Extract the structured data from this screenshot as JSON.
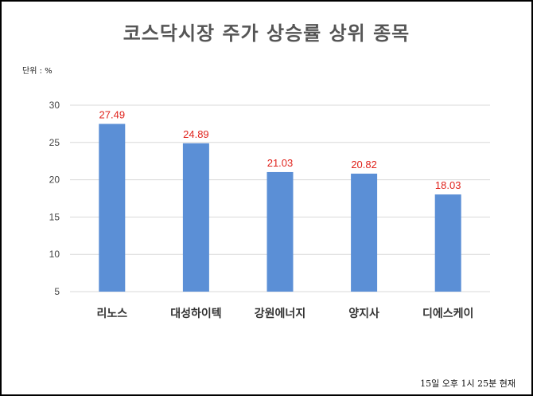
{
  "chart_data": {
    "type": "bar",
    "title": "코스닥시장 주가 상승률 상위 종목",
    "unit_label": "단위 : %",
    "footnote": "15일 오후 1시 25분 현재",
    "categories": [
      "리노스",
      "대성하이텍",
      "강원에너지",
      "양지사",
      "디에스케이"
    ],
    "values": [
      27.49,
      24.89,
      21.03,
      20.82,
      18.03
    ],
    "value_labels": [
      "27.49",
      "24.89",
      "21.03",
      "20.82",
      "18.03"
    ],
    "ylim": [
      5,
      30
    ],
    "yticks": [
      "5",
      "10",
      "15",
      "20",
      "25",
      "30"
    ],
    "grid": true,
    "legend": "none",
    "colors": {
      "bar": "#5b8fd6",
      "data_label": "#e0231c",
      "grid": "#d9d9d9"
    }
  }
}
